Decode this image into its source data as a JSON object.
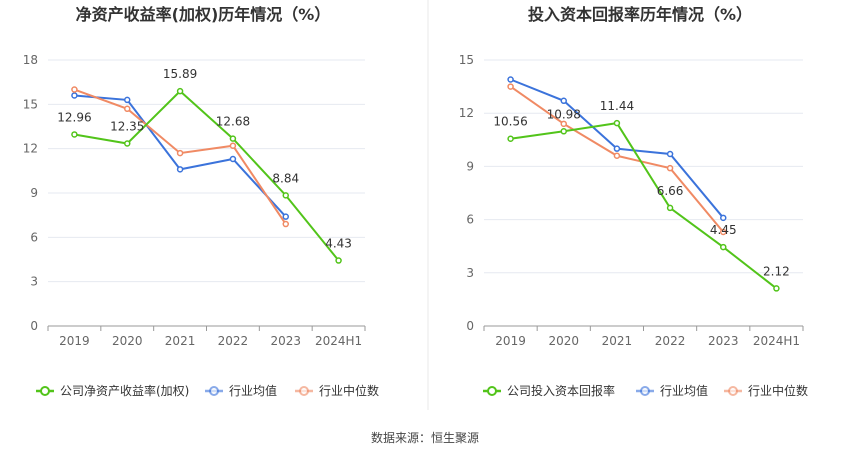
{
  "chart_data": [
    {
      "type": "line",
      "title": "净资产收益率(加权)历年情况（%）",
      "categories": [
        "2019",
        "2020",
        "2021",
        "2022",
        "2023",
        "2024H1"
      ],
      "yticks": [
        "0",
        "3",
        "6",
        "9",
        "12",
        "15",
        "18"
      ],
      "ylim": [
        0,
        18
      ],
      "grid": true,
      "legend_position": "bottom",
      "series": [
        {
          "name": "公司净资产收益率(加权)",
          "color": "#52c41a",
          "values": [
            12.96,
            12.35,
            15.89,
            12.68,
            8.84,
            4.43
          ],
          "labels": [
            "12.96",
            "12.35",
            "15.89",
            "12.68",
            "8.84",
            "4.43"
          ]
        },
        {
          "name": "行业均值",
          "color": "#3b73db",
          "values": [
            15.6,
            15.3,
            10.6,
            11.3,
            7.4,
            null
          ]
        },
        {
          "name": "行业中位数",
          "color": "#f08a64",
          "values": [
            16.0,
            14.7,
            11.7,
            12.2,
            6.9,
            null
          ]
        }
      ]
    },
    {
      "type": "line",
      "title": "投入资本回报率历年情况（%）",
      "categories": [
        "2019",
        "2020",
        "2021",
        "2022",
        "2023",
        "2024H1"
      ],
      "yticks": [
        "0",
        "3",
        "6",
        "9",
        "12",
        "15"
      ],
      "ylim": [
        0,
        15
      ],
      "grid": true,
      "legend_position": "bottom",
      "series": [
        {
          "name": "公司投入资本回报率",
          "color": "#52c41a",
          "values": [
            10.56,
            10.98,
            11.44,
            6.66,
            4.45,
            2.12
          ],
          "labels": [
            "10.56",
            "10.98",
            "11.44",
            "6.66",
            "4.45",
            "2.12"
          ]
        },
        {
          "name": "行业均值",
          "color": "#3b73db",
          "values": [
            13.9,
            12.7,
            10.0,
            9.7,
            6.1,
            null
          ]
        },
        {
          "name": "行业中位数",
          "color": "#f08a64",
          "values": [
            13.5,
            11.4,
            9.6,
            8.9,
            5.3,
            null
          ]
        }
      ]
    }
  ],
  "footer": {
    "source": "数据来源：恒生聚源"
  }
}
